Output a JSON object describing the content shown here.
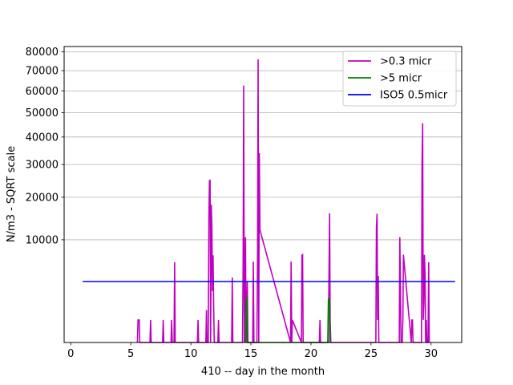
{
  "chart_data": {
    "type": "line",
    "xlabel": "410 -- day in the month",
    "ylabel": "N/m3 - SQRT scale",
    "y_scale": "sqrt",
    "xlim": [
      -0.55,
      32.55
    ],
    "ylim": [
      0,
      83000
    ],
    "grid": "horizontal",
    "legend_position": "top-right",
    "x_ticks": [
      0,
      5,
      10,
      15,
      20,
      25,
      30
    ],
    "x_tick_labels": [
      "0",
      "5",
      "10",
      "15",
      "20",
      "25",
      "30"
    ],
    "y_ticks": [
      10000,
      20000,
      30000,
      40000,
      50000,
      60000,
      70000,
      80000
    ],
    "y_tick_labels": [
      "10000",
      "20000",
      "30000",
      "40000",
      "50000",
      "60000",
      "70000",
      "80000"
    ],
    "series": [
      {
        "name": ">0.3 micr",
        "color": "#bf00bf",
        "x": [
          5.55,
          5.6,
          5.65,
          5.7,
          5.75,
          6.6,
          6.65,
          6.7,
          7.65,
          7.7,
          7.75,
          8.35,
          8.4,
          8.45,
          8.6,
          8.65,
          8.7,
          10.55,
          10.6,
          10.65,
          11.25,
          11.3,
          11.35,
          11.45,
          11.5,
          11.55,
          11.6,
          11.65,
          11.7,
          11.75,
          11.8,
          11.85,
          11.9,
          11.95,
          12.25,
          12.3,
          12.35,
          13.4,
          13.45,
          13.5,
          14.3,
          14.35,
          14.4,
          14.45,
          14.5,
          14.55,
          14.6,
          14.65,
          14.7,
          14.75,
          15.15,
          15.2,
          15.25,
          15.5,
          15.55,
          15.6,
          15.65,
          15.7,
          15.75,
          18.3,
          18.35,
          18.4,
          18.45,
          19.2,
          19.25,
          19.3,
          19.35,
          20.7,
          20.75,
          20.8,
          21.45,
          21.5,
          21.55,
          21.6,
          21.65,
          25.4,
          25.45,
          25.5,
          25.55,
          25.6,
          25.65,
          27.35,
          27.4,
          27.45,
          27.5,
          27.6,
          27.65,
          27.7,
          28.35,
          28.4,
          28.45,
          28.5,
          29.2,
          29.25,
          29.3,
          29.35,
          29.4,
          29.45,
          29.5,
          29.55,
          29.6,
          29.65,
          29.75,
          29.8,
          29.85
        ],
        "values": [
          0,
          480,
          480,
          480,
          0,
          0,
          480,
          0,
          0,
          480,
          0,
          0,
          480,
          0,
          0,
          6100,
          0,
          0,
          480,
          0,
          0,
          1000,
          0,
          0,
          14000,
          24700,
          25100,
          0,
          18000,
          13000,
          2500,
          7200,
          1100,
          0,
          0,
          480,
          0,
          0,
          4000,
          0,
          0,
          5500,
          62500,
          0,
          3200,
          10500,
          0,
          1100,
          3500,
          0,
          0,
          6200,
          0,
          0,
          7500,
          76000,
          0,
          34000,
          12000,
          0,
          6200,
          0,
          480,
          0,
          7200,
          7300,
          0,
          0,
          480,
          0,
          0,
          4000,
          15800,
          480,
          0,
          0,
          12500,
          15700,
          480,
          4200,
          0,
          0,
          10500,
          2800,
          0,
          0,
          480,
          7300,
          0,
          480,
          480,
          0,
          0,
          30000,
          45500,
          480,
          1500,
          7300,
          4500,
          0,
          480,
          0,
          0,
          6100,
          0
        ]
      },
      {
        "name": ">5 micr",
        "color": "#008000",
        "x": [
          14.55,
          14.6,
          14.65,
          14.7,
          21.4,
          21.45,
          21.5,
          21.55,
          21.6
        ],
        "values": [
          0,
          1600,
          2000,
          0,
          0,
          1800,
          1800,
          1800,
          0
        ]
      },
      {
        "name": "ISO5 0.5micr",
        "color": "#0000ff",
        "x": [
          1,
          32
        ],
        "values": [
          3520,
          3520
        ]
      }
    ]
  }
}
